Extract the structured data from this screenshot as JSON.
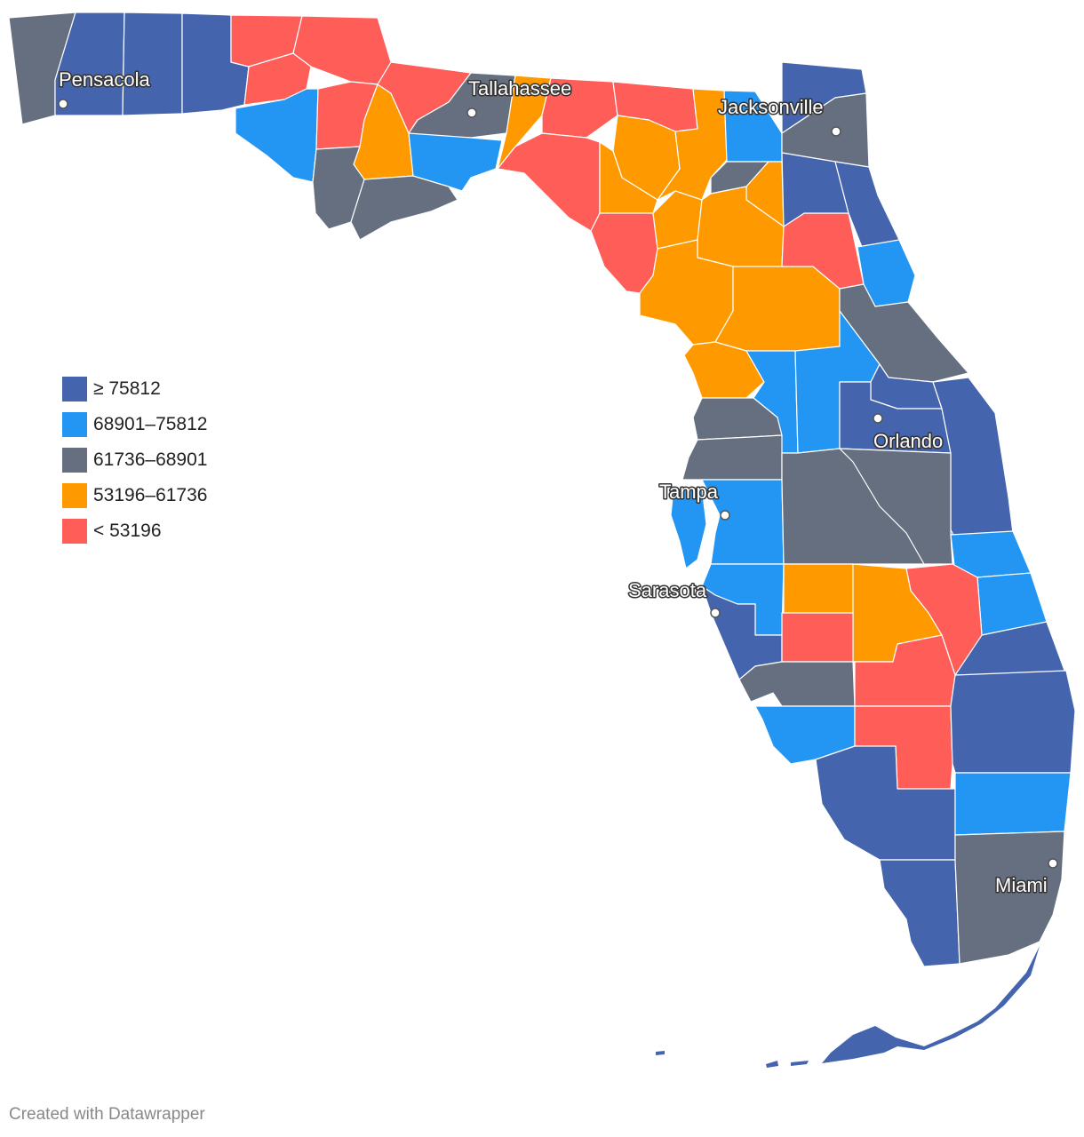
{
  "legend": {
    "items": [
      {
        "label": "≥ 75812",
        "color": "#4464ae"
      },
      {
        "label": "68901–75812",
        "color": "#2396f3"
      },
      {
        "label": "61736–68901",
        "color": "#666f80"
      },
      {
        "label": "53196–61736",
        "color": "#ff9900"
      },
      {
        "label": "< 53196",
        "color": "#ff5d58"
      }
    ]
  },
  "cities": [
    {
      "name": "Pensacola"
    },
    {
      "name": "Tallahassee"
    },
    {
      "name": "Jacksonville"
    },
    {
      "name": "Orlando"
    },
    {
      "name": "Tampa"
    },
    {
      "name": "Sarasota"
    },
    {
      "name": "Miami"
    }
  ],
  "footer": {
    "credit": "Created with Datawrapper"
  }
}
